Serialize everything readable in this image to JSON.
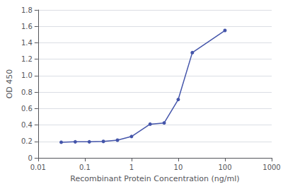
{
  "chart_data": {
    "type": "line",
    "xlabel": "Recombinant Protein Concentration (ng/ml)",
    "ylabel": "OD 450",
    "x": [
      0.0313,
      0.0625,
      0.125,
      0.25,
      0.5,
      1.0,
      2.5,
      5.0,
      10.0,
      20.0,
      100.0
    ],
    "values": [
      0.19,
      0.195,
      0.195,
      0.2,
      0.215,
      0.26,
      0.41,
      0.425,
      0.71,
      1.28,
      1.55
    ],
    "color": "#4455aa",
    "marker": "circle",
    "line_style": "solid",
    "log": "x",
    "xlim": [
      0.01,
      1000
    ],
    "xticks": [
      0.01,
      0.1,
      1,
      10,
      100,
      1000
    ],
    "ylim": [
      0,
      1.8
    ],
    "yticks": [
      0,
      0.2,
      0.4,
      0.6,
      0.8,
      {
        "value": 1,
        "label": "1.0"
      },
      1.2,
      1.4,
      1.6,
      1.8
    ],
    "grid": true
  }
}
